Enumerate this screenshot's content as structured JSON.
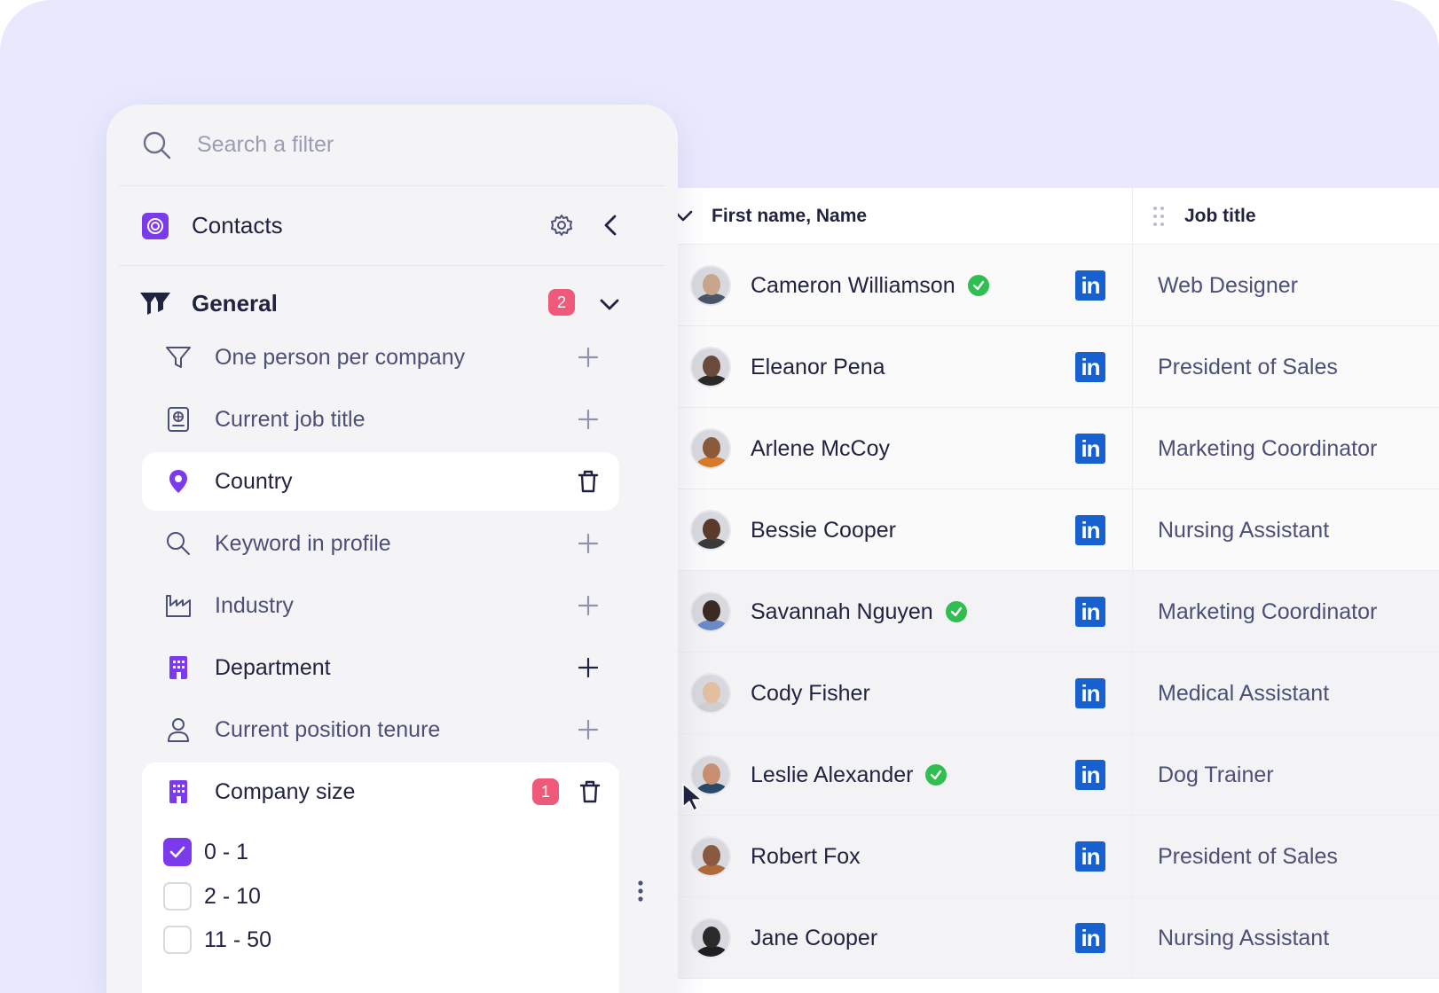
{
  "search": {
    "placeholder": "Search a filter"
  },
  "panel": {
    "title": "Contacts",
    "general": {
      "title": "General",
      "badge": "2"
    },
    "filters": [
      {
        "label": "One person per company",
        "icon": "funnel-icon",
        "action": "plus-icon"
      },
      {
        "label": "Current job title",
        "icon": "id-badge-icon",
        "action": "plus-icon"
      },
      {
        "label": "Country",
        "icon": "location-pin-icon",
        "action": "trash-icon"
      },
      {
        "label": "Keyword in profile",
        "icon": "search-icon",
        "action": "plus-icon"
      },
      {
        "label": "Industry",
        "icon": "factory-icon",
        "action": "plus-icon"
      },
      {
        "label": "Department",
        "icon": "building-icon",
        "action": "plus-icon"
      },
      {
        "label": "Current position tenure",
        "icon": "person-icon",
        "action": "plus-icon"
      }
    ],
    "company_size": {
      "label": "Company size",
      "badge": "1",
      "options": [
        {
          "label": "0 - 1",
          "checked": true
        },
        {
          "label": "2 - 10",
          "checked": false
        },
        {
          "label": "11 - 50",
          "checked": false
        }
      ]
    }
  },
  "table": {
    "columns": {
      "name": "First name, Name",
      "job": "Job title"
    },
    "rows": [
      {
        "name": "Cameron Williamson",
        "verified": true,
        "job": "Web Designer"
      },
      {
        "name": "Eleanor Pena",
        "verified": false,
        "job": "President of Sales"
      },
      {
        "name": "Arlene McCoy",
        "verified": false,
        "job": "Marketing Coordinator"
      },
      {
        "name": "Bessie Cooper",
        "verified": false,
        "job": "Nursing Assistant"
      },
      {
        "name": "Savannah Nguyen",
        "verified": true,
        "job": "Marketing Coordinator"
      },
      {
        "name": "Cody Fisher",
        "verified": false,
        "job": "Medical Assistant"
      },
      {
        "name": "Leslie Alexander",
        "verified": true,
        "job": "Dog Trainer"
      },
      {
        "name": "Robert Fox",
        "verified": false,
        "job": "President of Sales"
      },
      {
        "name": "Jane Cooper",
        "verified": false,
        "job": "Nursing Assistant"
      }
    ],
    "linkedin_label": "in"
  },
  "colors": {
    "accent": "#7c3aed",
    "badge": "#ef5a7a",
    "verified": "#2fbe4f",
    "linkedin": "#1760cf",
    "background": "#e9e9fe"
  }
}
